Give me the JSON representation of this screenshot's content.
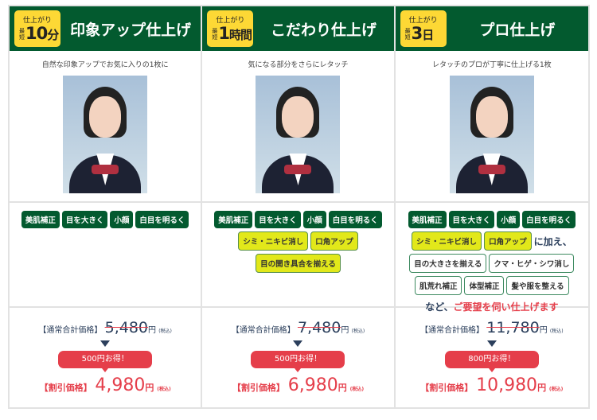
{
  "plans": [
    {
      "badge_top": "仕上がり",
      "badge_pre": "最短",
      "badge_val": "10",
      "badge_unit": "分",
      "title": "印象アップ仕上げ",
      "subtitle": "自然な印象アップでお気に入りの1枚に",
      "tags": [
        {
          "t": "美肌補正",
          "s": "g"
        },
        {
          "t": "目を大きく",
          "s": "g"
        },
        {
          "t": "小顔",
          "s": "g"
        },
        {
          "t": "白目を明るく",
          "s": "g"
        }
      ],
      "regular_label": "【通常合計価格】",
      "regular": "5,480",
      "yen": "円",
      "tax": "(税込)",
      "save": "500円お得！",
      "disc_label": "【割引価格】",
      "disc": "4,980"
    },
    {
      "badge_top": "仕上がり",
      "badge_pre": "最短",
      "badge_val": "1",
      "badge_unit": "時間",
      "title": "こだわり仕上げ",
      "subtitle": "気になる部分をさらにレタッチ",
      "tags": [
        {
          "t": "美肌補正",
          "s": "g"
        },
        {
          "t": "目を大きく",
          "s": "g"
        },
        {
          "t": "小顔",
          "s": "g"
        },
        {
          "t": "白目を明るく",
          "s": "g"
        },
        {
          "t": "シミ・ニキビ消し",
          "s": "y"
        },
        {
          "t": "口角アップ",
          "s": "y"
        },
        {
          "t": "目の開き具合を揃える",
          "s": "y"
        }
      ],
      "regular_label": "【通常合計価格】",
      "regular": "7,480",
      "yen": "円",
      "tax": "(税込)",
      "save": "500円お得！",
      "disc_label": "【割引価格】",
      "disc": "6,980"
    },
    {
      "badge_top": "仕上がり",
      "badge_pre": "最短",
      "badge_val": "3",
      "badge_unit": "日",
      "title": "プロ仕上げ",
      "subtitle": "レタッチのプロが丁寧に仕上げる1枚",
      "tags": [
        {
          "t": "美肌補正",
          "s": "g"
        },
        {
          "t": "目を大きく",
          "s": "g"
        },
        {
          "t": "小顔",
          "s": "g"
        },
        {
          "t": "白目を明るく",
          "s": "g"
        },
        {
          "t": "シミ・ニキビ消し",
          "s": "y"
        },
        {
          "t": "口角アップ",
          "s": "y"
        },
        {
          "t": "に加え、",
          "s": "plus"
        },
        {
          "t": "目の大きさを揃える",
          "s": "o"
        },
        {
          "t": "クマ・ヒゲ・シワ消し",
          "s": "o"
        },
        {
          "t": "肌荒れ補正",
          "s": "o"
        },
        {
          "t": "体型補正",
          "s": "o"
        },
        {
          "t": "髪や服を整える",
          "s": "o"
        }
      ],
      "note_a": "など、",
      "note_b": "ご要望を伺い仕上げます",
      "regular_label": "【通常合計価格】",
      "regular": "11,780",
      "yen": "円",
      "tax": "(税込)",
      "save": "800円お得！",
      "disc_label": "【割引価格】",
      "disc": "10,980"
    }
  ],
  "colors": {
    "header": "#035a2f",
    "badge": "#fdd835",
    "accent": "#e53e4a",
    "highlight": "#e2e81a"
  }
}
